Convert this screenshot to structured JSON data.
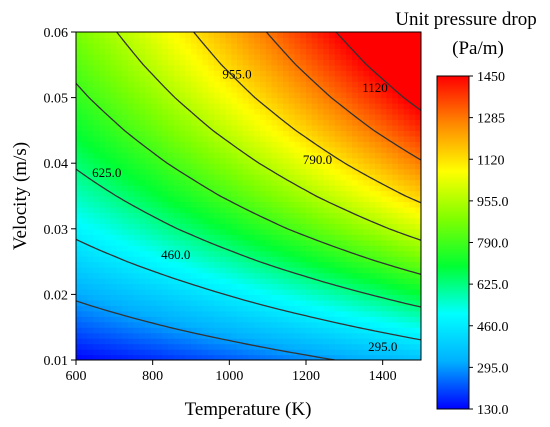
{
  "chart_data": {
    "type": "heatmap",
    "subtype": "filled-contour",
    "xlabel": "Temperature (K)",
    "ylabel": "Velocity (m/s)",
    "xlim": [
      600,
      1500
    ],
    "ylim": [
      0.01,
      0.06
    ],
    "xticks": [
      "600",
      "800",
      "1000",
      "1200",
      "1400"
    ],
    "yticks": [
      "0.01",
      "0.02",
      "0.03",
      "0.04",
      "0.05",
      "0.06"
    ],
    "colorbar": {
      "title_line1": "Unit pressure drop",
      "title_line2": "(Pa/m)",
      "range": [
        130,
        1450
      ],
      "ticks": [
        "1450",
        "1285",
        "1120",
        "955.0",
        "790.0",
        "625.0",
        "460.0",
        "295.0",
        "130.0"
      ],
      "colormap": [
        "#0000ff",
        "#00b0ff",
        "#00ffff",
        "#00ff33",
        "#80ff00",
        "#ffff00",
        "#ff8800",
        "#ff0000"
      ]
    },
    "grid": false,
    "temperature": [
      600,
      700,
      800,
      900,
      1000,
      1100,
      1200,
      1300,
      1400,
      1500
    ],
    "velocity": [
      0.01,
      0.015,
      0.02,
      0.025,
      0.03,
      0.035,
      0.04,
      0.045,
      0.05,
      0.055,
      0.06
    ],
    "values": [
      [
        130,
        152,
        174,
        198,
        222,
        248,
        274,
        302,
        330,
        360
      ],
      [
        225,
        253,
        282,
        313,
        345,
        378,
        412,
        448,
        485,
        523
      ],
      [
        312,
        348,
        385,
        424,
        465,
        507,
        550,
        595,
        641,
        689
      ],
      [
        403,
        445,
        490,
        537,
        585,
        636,
        688,
        742,
        797,
        854
      ],
      [
        487,
        537,
        590,
        644,
        701,
        759,
        819,
        881,
        944,
        1009
      ],
      [
        566,
        622,
        681,
        742,
        805,
        870,
        937,
        1006,
        1077,
        1149
      ],
      [
        638,
        700,
        765,
        831,
        900,
        971,
        1044,
        1119,
        1196,
        1274
      ],
      [
        705,
        772,
        841,
        913,
        987,
        1063,
        1141,
        1222,
        1304,
        1388
      ],
      [
        766,
        837,
        911,
        987,
        1066,
        1147,
        1229,
        1314,
        1401,
        1490
      ],
      [
        821,
        896,
        974,
        1054,
        1137,
        1221,
        1308,
        1397,
        1488,
        1581
      ],
      [
        872,
        950,
        1031,
        1114,
        1200,
        1288,
        1378,
        1470,
        1564,
        1660
      ]
    ],
    "contours": [
      {
        "level": 295,
        "label": "295.0",
        "label_at": [
          1400,
          0.012
        ]
      },
      {
        "level": 460,
        "label": "460.0",
        "label_at": [
          860,
          0.026
        ]
      },
      {
        "level": 625,
        "label": "625.0",
        "label_at": [
          680,
          0.0385
        ]
      },
      {
        "level": 790,
        "label": "790.0",
        "label_at": [
          1230,
          0.0405
        ]
      },
      {
        "level": 955,
        "label": "955.0",
        "label_at": [
          1020,
          0.0535
        ]
      },
      {
        "level": 1120,
        "label": "1120",
        "label_at": [
          1380,
          0.0515
        ]
      },
      {
        "level": 1285,
        "label": "",
        "label_at": null
      },
      {
        "level": 1450,
        "label": "",
        "label_at": null
      }
    ]
  }
}
